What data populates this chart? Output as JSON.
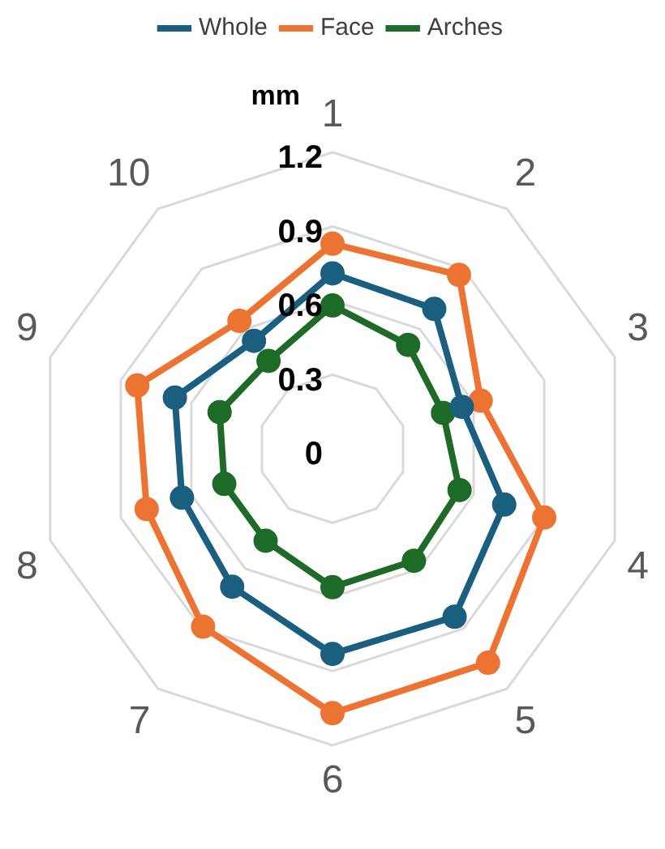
{
  "chart_data": {
    "type": "radar",
    "ylabel": "mm",
    "categories": [
      "1",
      "2",
      "3",
      "4",
      "5",
      "6",
      "7",
      "8",
      "9",
      "10"
    ],
    "series": [
      {
        "name": "Whole",
        "color": "#1b5f80",
        "values": [
          0.71,
          0.7,
          0.55,
          0.73,
          0.84,
          0.83,
          0.69,
          0.64,
          0.67,
          0.54
        ]
      },
      {
        "name": "Face",
        "color": "#ec7332",
        "values": [
          0.83,
          0.87,
          0.63,
          0.9,
          1.07,
          1.07,
          0.89,
          0.79,
          0.83,
          0.64
        ]
      },
      {
        "name": "Arches",
        "color": "#1e6b27",
        "values": [
          0.58,
          0.52,
          0.47,
          0.54,
          0.56,
          0.56,
          0.46,
          0.46,
          0.48,
          0.44
        ]
      }
    ],
    "ylim": [
      0,
      1.2
    ],
    "yticks": [
      0,
      0.3,
      0.6,
      0.9,
      1.2
    ],
    "grid": true,
    "legend": "top",
    "marker": "circle",
    "line_style": "solid"
  }
}
